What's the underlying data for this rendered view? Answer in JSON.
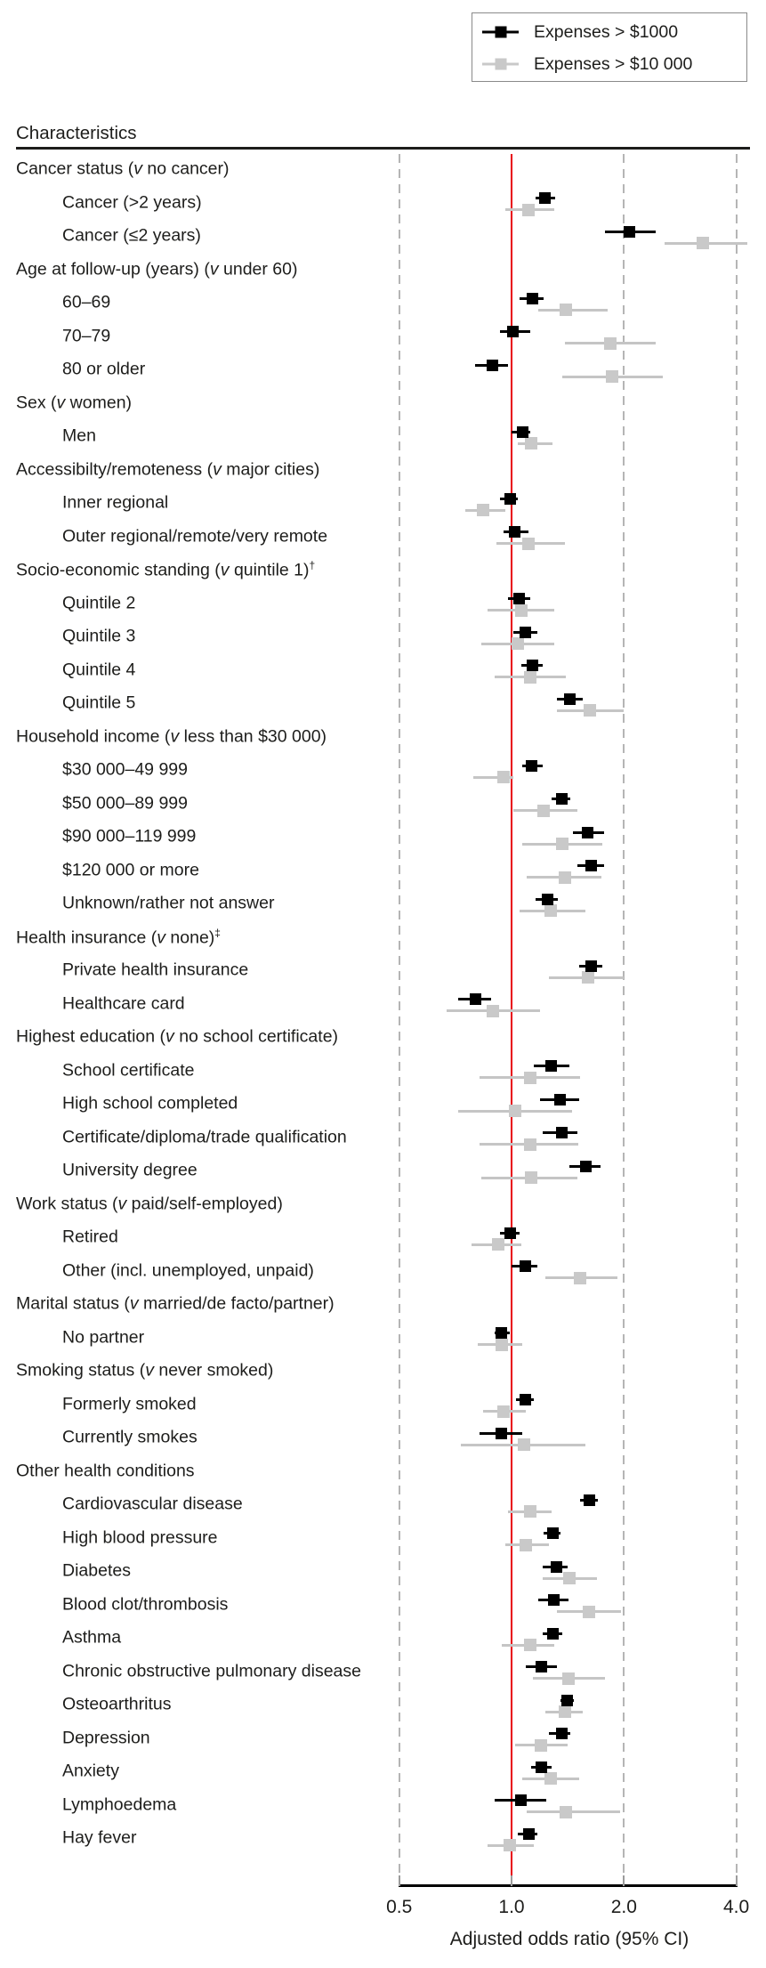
{
  "colors": {
    "series1": "#000000",
    "series2_marker": "#c9c9c9",
    "series2_line": "#c5c5c5",
    "reference_line": "#e8000f",
    "gridline": "#b5b5b5",
    "axis_line": "#000000",
    "text": "#1d1d1b"
  },
  "chart_data": {
    "type": "forest",
    "column_header": "Characteristics",
    "x_axis": {
      "scale": "log",
      "range": [
        0.5,
        4.0
      ],
      "ticks": [
        0.5,
        1.0,
        2.0,
        4.0
      ],
      "tick_labels": [
        "0.5",
        "1.0",
        "2.0",
        "4.0"
      ],
      "label": "Adjusted odds ratio (95% CI)",
      "reference_line": 1.0,
      "gridlines": [
        0.5,
        2.0,
        4.0
      ],
      "gridline_style": "dashed",
      "grid": true
    },
    "legend": {
      "position": "top-right",
      "entries": [
        {
          "label": "Expenses > $1000",
          "color": "#000000"
        },
        {
          "label": "Expenses > $10 000",
          "color": "#c9c9c9"
        }
      ]
    },
    "series_format": "[odds_ratio, ci_low, ci_high]",
    "series_names": [
      "Expenses > $1000",
      "Expenses > $10 000"
    ],
    "rows": [
      {
        "label": "Cancer status (v no cancer)",
        "header": true
      },
      {
        "label": "Cancer (>2 years)",
        "s1": [
          1.23,
          1.16,
          1.31
        ],
        "s2": [
          1.11,
          0.96,
          1.3
        ]
      },
      {
        "label": "Cancer (≤2 years)",
        "s1": [
          2.07,
          1.78,
          2.43
        ],
        "s2": [
          3.25,
          2.57,
          4.28
        ]
      },
      {
        "label": "Age at follow-up (years) (v under 60)",
        "header": true
      },
      {
        "label": "60–69",
        "s1": [
          1.14,
          1.05,
          1.22
        ],
        "s2": [
          1.4,
          1.18,
          1.81
        ]
      },
      {
        "label": "70–79",
        "s1": [
          1.01,
          0.93,
          1.12
        ],
        "s2": [
          1.84,
          1.39,
          2.43
        ]
      },
      {
        "label": "80 or older",
        "s1": [
          0.89,
          0.8,
          0.98
        ],
        "s2": [
          1.86,
          1.37,
          2.54
        ]
      },
      {
        "label": "Sex (v women)",
        "header": true
      },
      {
        "label": "Men",
        "s1": [
          1.07,
          1.0,
          1.12
        ],
        "s2": [
          1.13,
          1.04,
          1.29
        ]
      },
      {
        "label": "Accessibilty/remoteness (v major cities)",
        "header": true
      },
      {
        "label": "Inner regional",
        "s1": [
          0.99,
          0.93,
          1.04
        ],
        "s2": [
          0.84,
          0.75,
          0.96
        ]
      },
      {
        "label": "Outer regional/remote/very remote",
        "s1": [
          1.02,
          0.95,
          1.11
        ],
        "s2": [
          1.11,
          0.91,
          1.39
        ]
      },
      {
        "label": "Socio-economic standing (v quintile 1)†",
        "header": true
      },
      {
        "label": "Quintile 2",
        "s1": [
          1.05,
          0.98,
          1.12
        ],
        "s2": [
          1.06,
          0.86,
          1.3
        ]
      },
      {
        "label": "Quintile 3",
        "s1": [
          1.09,
          1.01,
          1.17
        ],
        "s2": [
          1.04,
          0.83,
          1.3
        ]
      },
      {
        "label": "Quintile 4",
        "s1": [
          1.14,
          1.06,
          1.21
        ],
        "s2": [
          1.12,
          0.9,
          1.4
        ]
      },
      {
        "label": "Quintile 5",
        "s1": [
          1.43,
          1.32,
          1.55
        ],
        "s2": [
          1.62,
          1.32,
          2.0
        ]
      },
      {
        "label": "Household income (v less than $30 000)",
        "header": true
      },
      {
        "label": "$30 000–49 999",
        "s1": [
          1.13,
          1.07,
          1.21
        ],
        "s2": [
          0.95,
          0.79,
          1.01
        ]
      },
      {
        "label": "$50 000–89 999",
        "s1": [
          1.36,
          1.28,
          1.44
        ],
        "s2": [
          1.22,
          1.01,
          1.5
        ]
      },
      {
        "label": "$90 000–119 999",
        "s1": [
          1.6,
          1.46,
          1.77
        ],
        "s2": [
          1.37,
          1.07,
          1.75
        ]
      },
      {
        "label": "$120 000 or more",
        "s1": [
          1.63,
          1.5,
          1.77
        ],
        "s2": [
          1.39,
          1.1,
          1.74
        ]
      },
      {
        "label": "Unknown/rather not answer",
        "s1": [
          1.25,
          1.16,
          1.33
        ],
        "s2": [
          1.27,
          1.05,
          1.58
        ]
      },
      {
        "label": "Health insurance (v none)‡",
        "header": true
      },
      {
        "label": "Private health insurance",
        "s1": [
          1.63,
          1.52,
          1.75
        ],
        "s2": [
          1.6,
          1.26,
          2.0
        ]
      },
      {
        "label": "Healthcare card",
        "s1": [
          0.8,
          0.72,
          0.88
        ],
        "s2": [
          0.89,
          0.67,
          1.19
        ]
      },
      {
        "label": "Highest education (v no school certificate)",
        "header": true
      },
      {
        "label": "School certificate",
        "s1": [
          1.28,
          1.15,
          1.43
        ],
        "s2": [
          1.12,
          0.82,
          1.53
        ]
      },
      {
        "label": "High school completed",
        "s1": [
          1.35,
          1.19,
          1.52
        ],
        "s2": [
          1.02,
          0.72,
          1.45
        ]
      },
      {
        "label": "Certificate/diploma/trade qualification",
        "s1": [
          1.36,
          1.21,
          1.5
        ],
        "s2": [
          1.12,
          0.82,
          1.51
        ]
      },
      {
        "label": "University degree",
        "s1": [
          1.58,
          1.43,
          1.73
        ],
        "s2": [
          1.13,
          0.83,
          1.5
        ]
      },
      {
        "label": "Work status (v paid/self-employed)",
        "header": true
      },
      {
        "label": "Retired",
        "s1": [
          0.99,
          0.93,
          1.05
        ],
        "s2": [
          0.92,
          0.78,
          1.06
        ]
      },
      {
        "label": "Other (incl. unemployed, unpaid)",
        "s1": [
          1.09,
          1.0,
          1.17
        ],
        "s2": [
          1.53,
          1.23,
          1.92
        ]
      },
      {
        "label": "Marital status (v married/de facto/partner)",
        "header": true
      },
      {
        "label": "No partner",
        "s1": [
          0.94,
          0.9,
          0.99
        ],
        "s2": [
          0.94,
          0.81,
          1.07
        ]
      },
      {
        "label": "Smoking status (v never smoked)",
        "header": true
      },
      {
        "label": "Formerly smoked",
        "s1": [
          1.09,
          1.03,
          1.15
        ],
        "s2": [
          0.95,
          0.84,
          1.09
        ]
      },
      {
        "label": "Currently smokes",
        "s1": [
          0.94,
          0.82,
          1.07
        ],
        "s2": [
          1.08,
          0.73,
          1.58
        ]
      },
      {
        "label": "Other health conditions",
        "header": true
      },
      {
        "label": "Cardiovascular disease",
        "s1": [
          1.62,
          1.53,
          1.7
        ],
        "s2": [
          1.12,
          0.98,
          1.28
        ]
      },
      {
        "label": "High blood pressure",
        "s1": [
          1.29,
          1.22,
          1.35
        ],
        "s2": [
          1.09,
          0.96,
          1.26
        ]
      },
      {
        "label": "Diabetes",
        "s1": [
          1.32,
          1.21,
          1.41
        ],
        "s2": [
          1.43,
          1.21,
          1.69
        ]
      },
      {
        "label": "Blood clot/thrombosis",
        "s1": [
          1.3,
          1.18,
          1.42
        ],
        "s2": [
          1.61,
          1.32,
          1.96
        ]
      },
      {
        "label": "Asthma",
        "s1": [
          1.29,
          1.21,
          1.37
        ],
        "s2": [
          1.12,
          0.94,
          1.3
        ]
      },
      {
        "label": "Chronic obstructive pulmonary disease",
        "s1": [
          1.2,
          1.09,
          1.32
        ],
        "s2": [
          1.42,
          1.14,
          1.78
        ]
      },
      {
        "label": "Osteoarthritus",
        "s1": [
          1.41,
          1.35,
          1.47
        ],
        "s2": [
          1.39,
          1.23,
          1.55
        ]
      },
      {
        "label": "Depression",
        "s1": [
          1.36,
          1.26,
          1.44
        ],
        "s2": [
          1.2,
          1.02,
          1.41
        ]
      },
      {
        "label": "Anxiety",
        "s1": [
          1.2,
          1.13,
          1.28
        ],
        "s2": [
          1.27,
          1.07,
          1.52
        ]
      },
      {
        "label": "Lymphoedema",
        "s1": [
          1.06,
          0.9,
          1.24
        ],
        "s2": [
          1.4,
          1.1,
          1.95
        ]
      },
      {
        "label": "Hay fever",
        "s1": [
          1.11,
          1.04,
          1.17
        ],
        "s2": [
          0.99,
          0.86,
          1.15
        ]
      }
    ]
  }
}
